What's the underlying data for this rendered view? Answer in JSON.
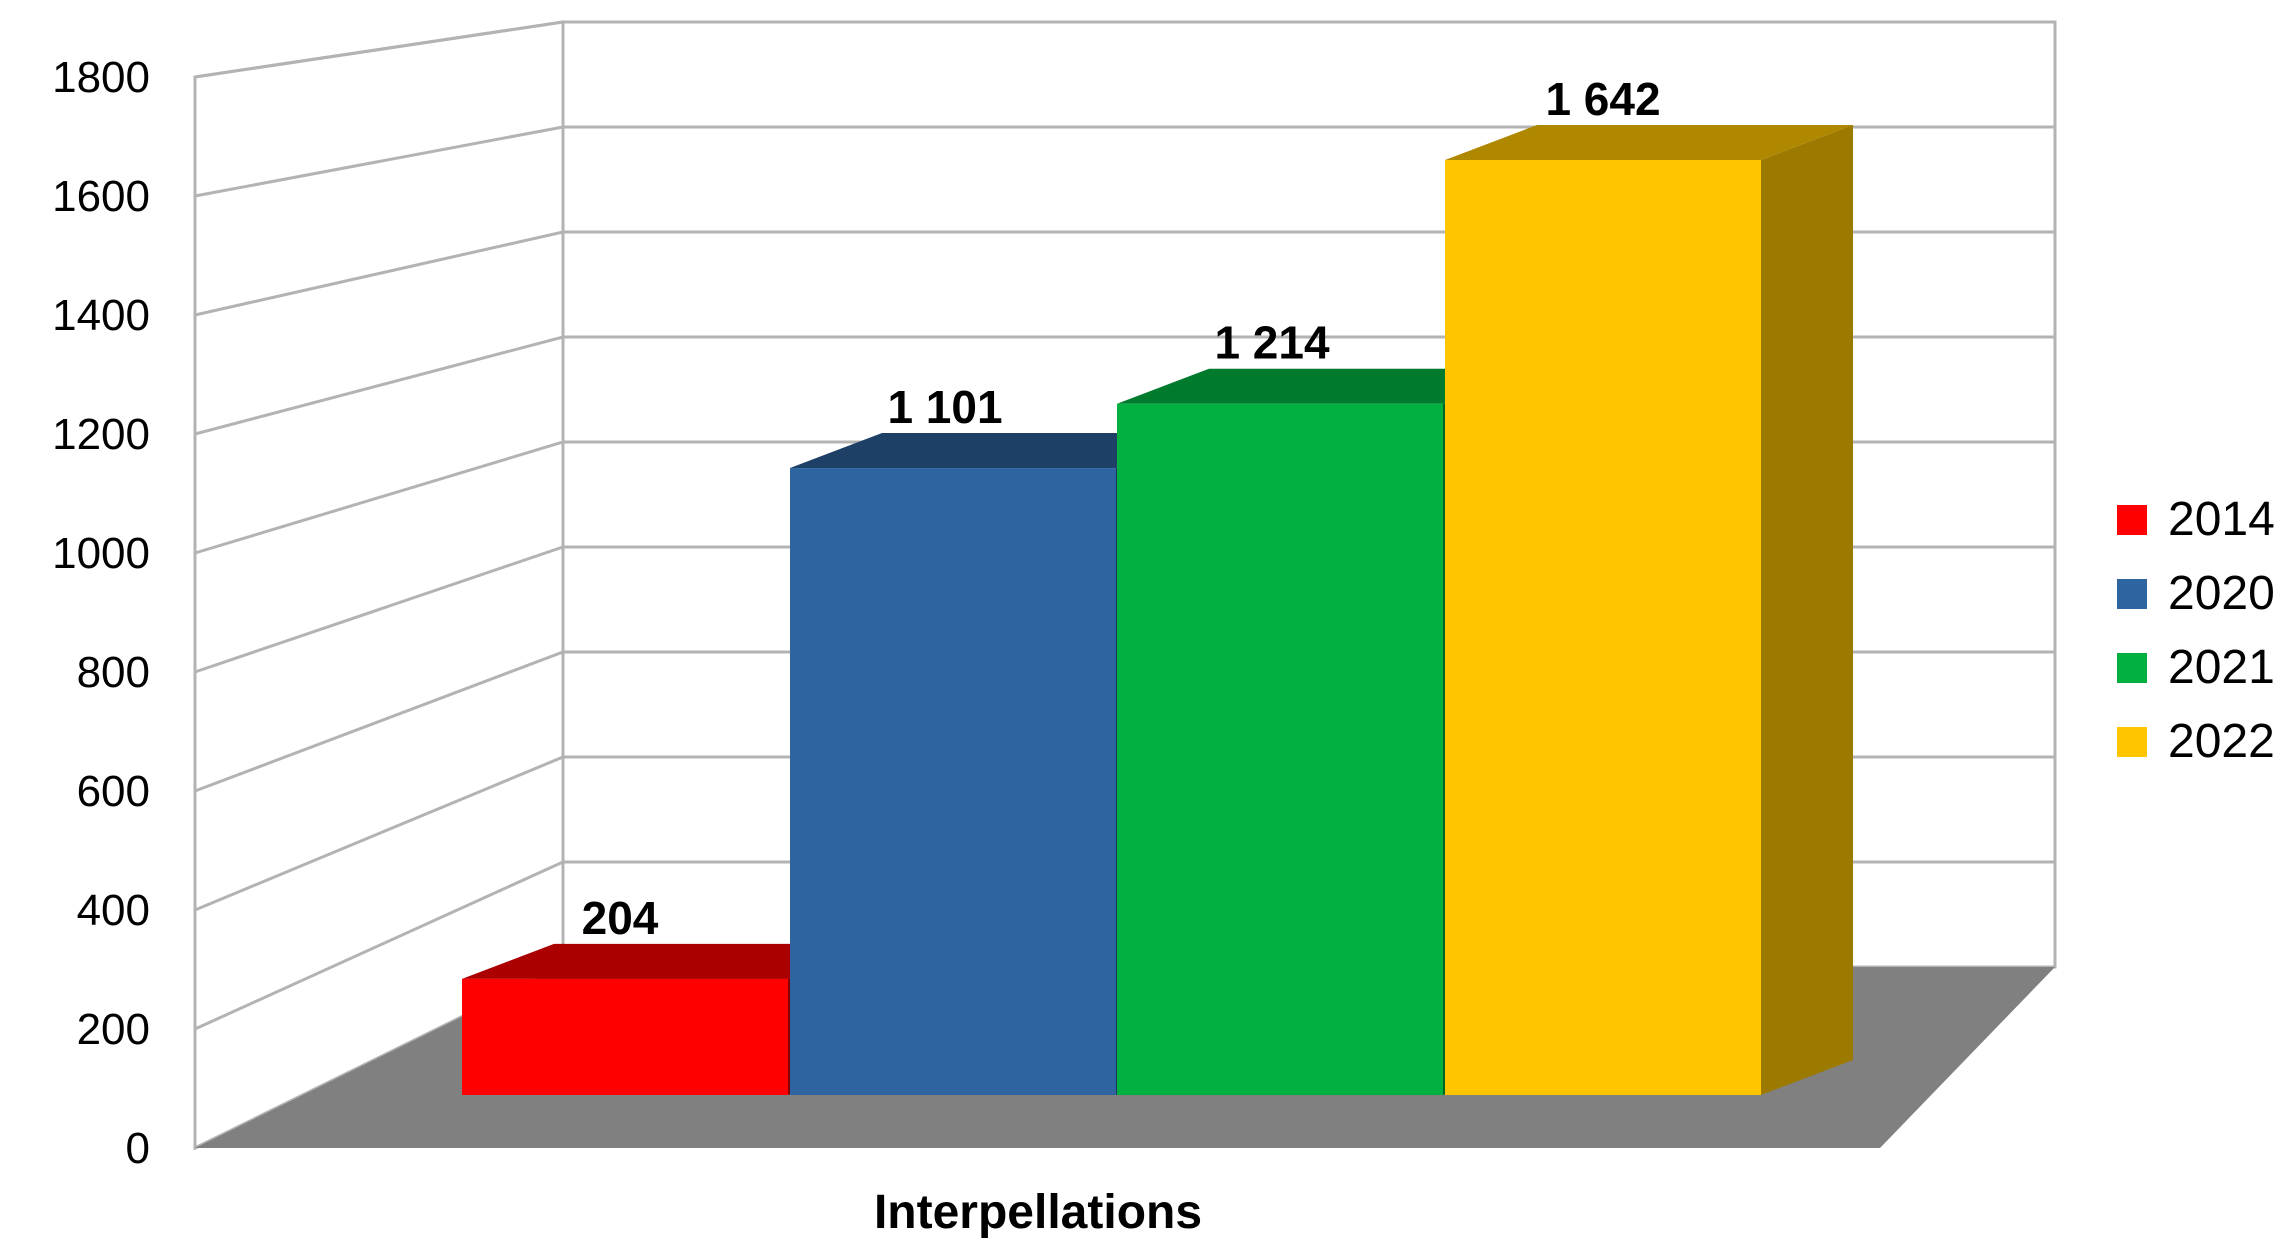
{
  "chart_data": {
    "type": "bar",
    "title": "",
    "xlabel": "",
    "ylabel": "",
    "categories": [
      "Interpellations"
    ],
    "ylim": [
      0,
      1800
    ],
    "yticks": [
      0,
      200,
      400,
      600,
      800,
      1000,
      1200,
      1400,
      1600,
      1800
    ],
    "grid": true,
    "legend_position": "right",
    "style": "3d",
    "series": [
      {
        "name": "2014",
        "values": [
          204
        ],
        "label": "204",
        "color": "#ff0000",
        "top_color": "#aa0000",
        "side_color": "#880000"
      },
      {
        "name": "2020",
        "values": [
          1101
        ],
        "label": "1 101",
        "color": "#2e64a0",
        "top_color": "#1e3f66",
        "side_color": "#1a3558"
      },
      {
        "name": "2021",
        "values": [
          1214
        ],
        "label": "1 214",
        "color": "#00b040",
        "top_color": "#007a2c",
        "side_color": "#006624"
      },
      {
        "name": "2022",
        "values": [
          1642
        ],
        "label": "1 642",
        "color": "#ffc600",
        "top_color": "#b08800",
        "side_color": "#9c7a00"
      }
    ]
  }
}
